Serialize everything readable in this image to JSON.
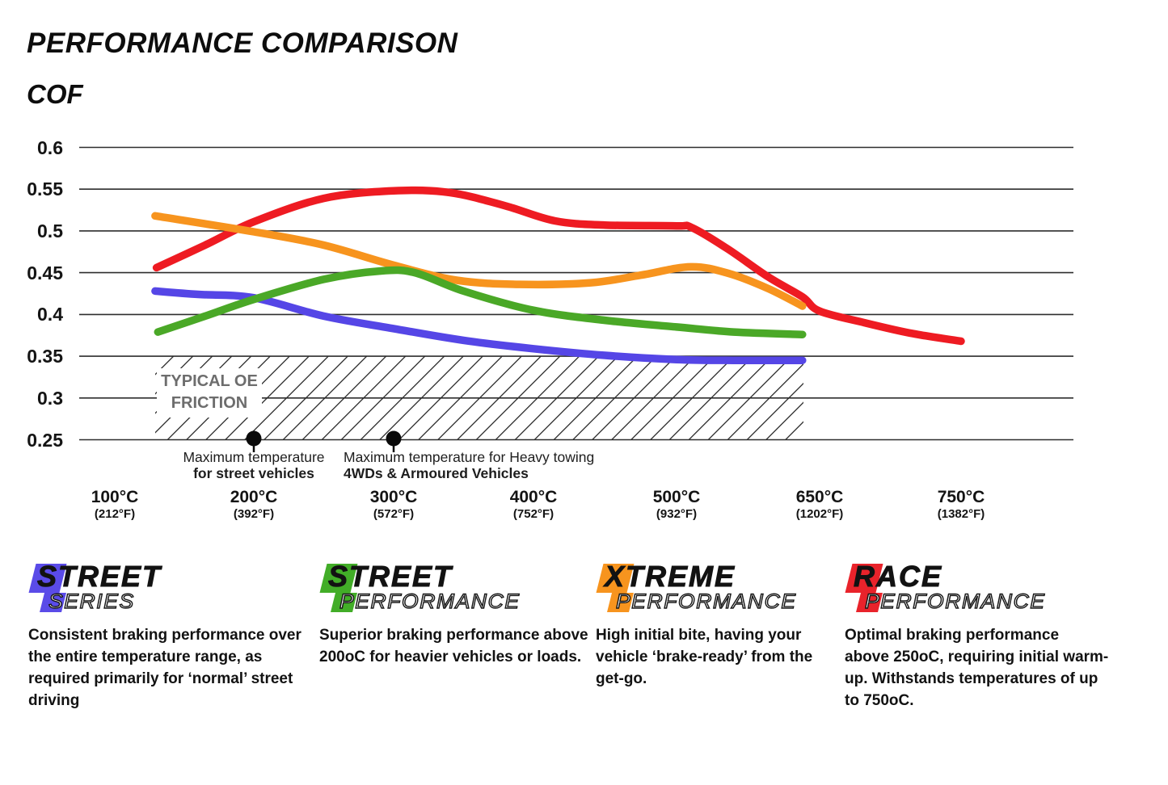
{
  "header": {
    "title": "PERFORMANCE COMPARISON",
    "y_axis_label": "COF"
  },
  "chart_data": {
    "type": "line",
    "title": "PERFORMANCE COMPARISON",
    "ylabel": "COF",
    "ylim": [
      0.25,
      0.6
    ],
    "grid": "horizontal",
    "yticks": [
      "0.6",
      "0.55",
      "0.5",
      "0.45",
      "0.4",
      "0.35",
      "0.3",
      "0.25"
    ],
    "ytick_values": [
      0.6,
      0.55,
      0.5,
      0.45,
      0.4,
      0.35,
      0.3,
      0.25
    ],
    "x_ticks": [
      {
        "t": 100,
        "label": "100°C",
        "sub": "(212°F)"
      },
      {
        "t": 200,
        "label": "200°C",
        "sub": "(392°F)"
      },
      {
        "t": 300,
        "label": "300°C",
        "sub": "(572°F)"
      },
      {
        "t": 400,
        "label": "400°C",
        "sub": "(752°F)"
      },
      {
        "t": 500,
        "label": "500°C",
        "sub": "(932°F)"
      },
      {
        "t": 650,
        "label": "650°C",
        "sub": "(1202°F)"
      },
      {
        "t": 750,
        "label": "750°C",
        "sub": "(1382°F)"
      }
    ],
    "band": {
      "label": "TYPICAL OE FRICTION",
      "cof_range": [
        0.25,
        0.35
      ],
      "temp_range": [
        129,
        632
      ]
    },
    "annotations": [
      {
        "t": 200,
        "line1": "Maximum temperature",
        "line2": "for street vehicles"
      },
      {
        "t": 300,
        "line1": "Maximum temperature for Heavy towing",
        "line2": "4WDs & Armoured Vehicles"
      }
    ],
    "series": [
      {
        "name": "Street Series",
        "color": "#5546e6",
        "points": [
          [
            129,
            0.428
          ],
          [
            160,
            0.424
          ],
          [
            200,
            0.42
          ],
          [
            250,
            0.398
          ],
          [
            300,
            0.383
          ],
          [
            350,
            0.369
          ],
          [
            400,
            0.359
          ],
          [
            450,
            0.351
          ],
          [
            500,
            0.346
          ],
          [
            560,
            0.345
          ],
          [
            632,
            0.345
          ]
        ]
      },
      {
        "name": "Street Performance",
        "color": "#4aa827",
        "points": [
          [
            131,
            0.379
          ],
          [
            165,
            0.398
          ],
          [
            200,
            0.418
          ],
          [
            250,
            0.442
          ],
          [
            290,
            0.452
          ],
          [
            315,
            0.45
          ],
          [
            350,
            0.428
          ],
          [
            400,
            0.405
          ],
          [
            450,
            0.393
          ],
          [
            500,
            0.385
          ],
          [
            560,
            0.379
          ],
          [
            632,
            0.376
          ]
        ]
      },
      {
        "name": "Xtreme Performance",
        "color": "#f7941e",
        "points": [
          [
            129,
            0.518
          ],
          [
            200,
            0.499
          ],
          [
            250,
            0.483
          ],
          [
            300,
            0.459
          ],
          [
            345,
            0.441
          ],
          [
            390,
            0.436
          ],
          [
            440,
            0.438
          ],
          [
            475,
            0.447
          ],
          [
            515,
            0.457
          ],
          [
            555,
            0.449
          ],
          [
            596,
            0.431
          ],
          [
            632,
            0.41
          ]
        ]
      },
      {
        "name": "Race Performance",
        "color": "#ee1b22",
        "points": [
          [
            130,
            0.456
          ],
          [
            165,
            0.483
          ],
          [
            200,
            0.511
          ],
          [
            250,
            0.539
          ],
          [
            300,
            0.548
          ],
          [
            340,
            0.546
          ],
          [
            380,
            0.53
          ],
          [
            415,
            0.512
          ],
          [
            450,
            0.507
          ],
          [
            500,
            0.506
          ],
          [
            516,
            0.504
          ],
          [
            553,
            0.479
          ],
          [
            596,
            0.445
          ],
          [
            632,
            0.421
          ],
          [
            650,
            0.404
          ],
          [
            682,
            0.39
          ],
          [
            716,
            0.377
          ],
          [
            750,
            0.368
          ]
        ]
      }
    ]
  },
  "legend": [
    {
      "line1": "STREET",
      "line2": "SERIES",
      "color": "#5a4be8",
      "desc": "Consistent braking performance over\nthe entire temperature range, as\nrequired primarily for ‘normal’ street\ndriving"
    },
    {
      "line1": "STREET",
      "line2": "PERFORMANCE",
      "color": "#42ad28",
      "desc": "Superior braking performance above\n200oC for heavier vehicles or loads."
    },
    {
      "line1": "XTREME",
      "line2": "PERFORMANCE",
      "color": "#f7941e",
      "desc": "High initial bite, having your\nvehicle ‘brake-ready’ from the\nget-go."
    },
    {
      "line1": "RACE",
      "line2": "PERFORMANCE",
      "color": "#e9232b",
      "desc": "Optimal braking performance\nabove 250oC, requiring initial warm-\nup. Withstands temperatures of up\nto 750oC."
    }
  ]
}
